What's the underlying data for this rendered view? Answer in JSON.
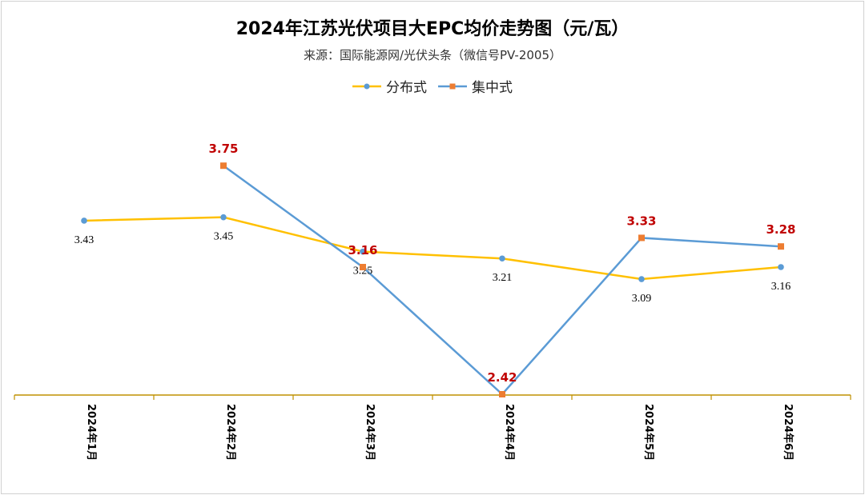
{
  "chart_data": {
    "type": "line",
    "title": "2024年江苏光伏项目大EPC均价走势图（元/瓦）",
    "subtitle": "来源：国际能源网/光伏头条（微信号PV-2005）",
    "categories": [
      "2024年1月",
      "2024年2月",
      "2024年3月",
      "2024年4月",
      "2024年5月",
      "2024年6月"
    ],
    "series": [
      {
        "name": "分布式",
        "values": [
          3.43,
          3.45,
          3.25,
          3.21,
          3.09,
          3.16
        ],
        "line_color": "#FFC000",
        "marker_color": "#5B9BD5",
        "marker": "circle",
        "label_color": "#000000"
      },
      {
        "name": "集中式",
        "values": [
          null,
          3.75,
          3.16,
          2.42,
          3.33,
          3.28
        ],
        "line_color": "#5B9BD5",
        "marker_color": "#ED7D31",
        "marker": "square",
        "label_color": "#C00000"
      }
    ],
    "xlabel": "",
    "ylabel": "",
    "ylim": [
      2.42,
      4.1
    ],
    "grid": false,
    "legend": "top",
    "axis_color": "#BF9000"
  }
}
